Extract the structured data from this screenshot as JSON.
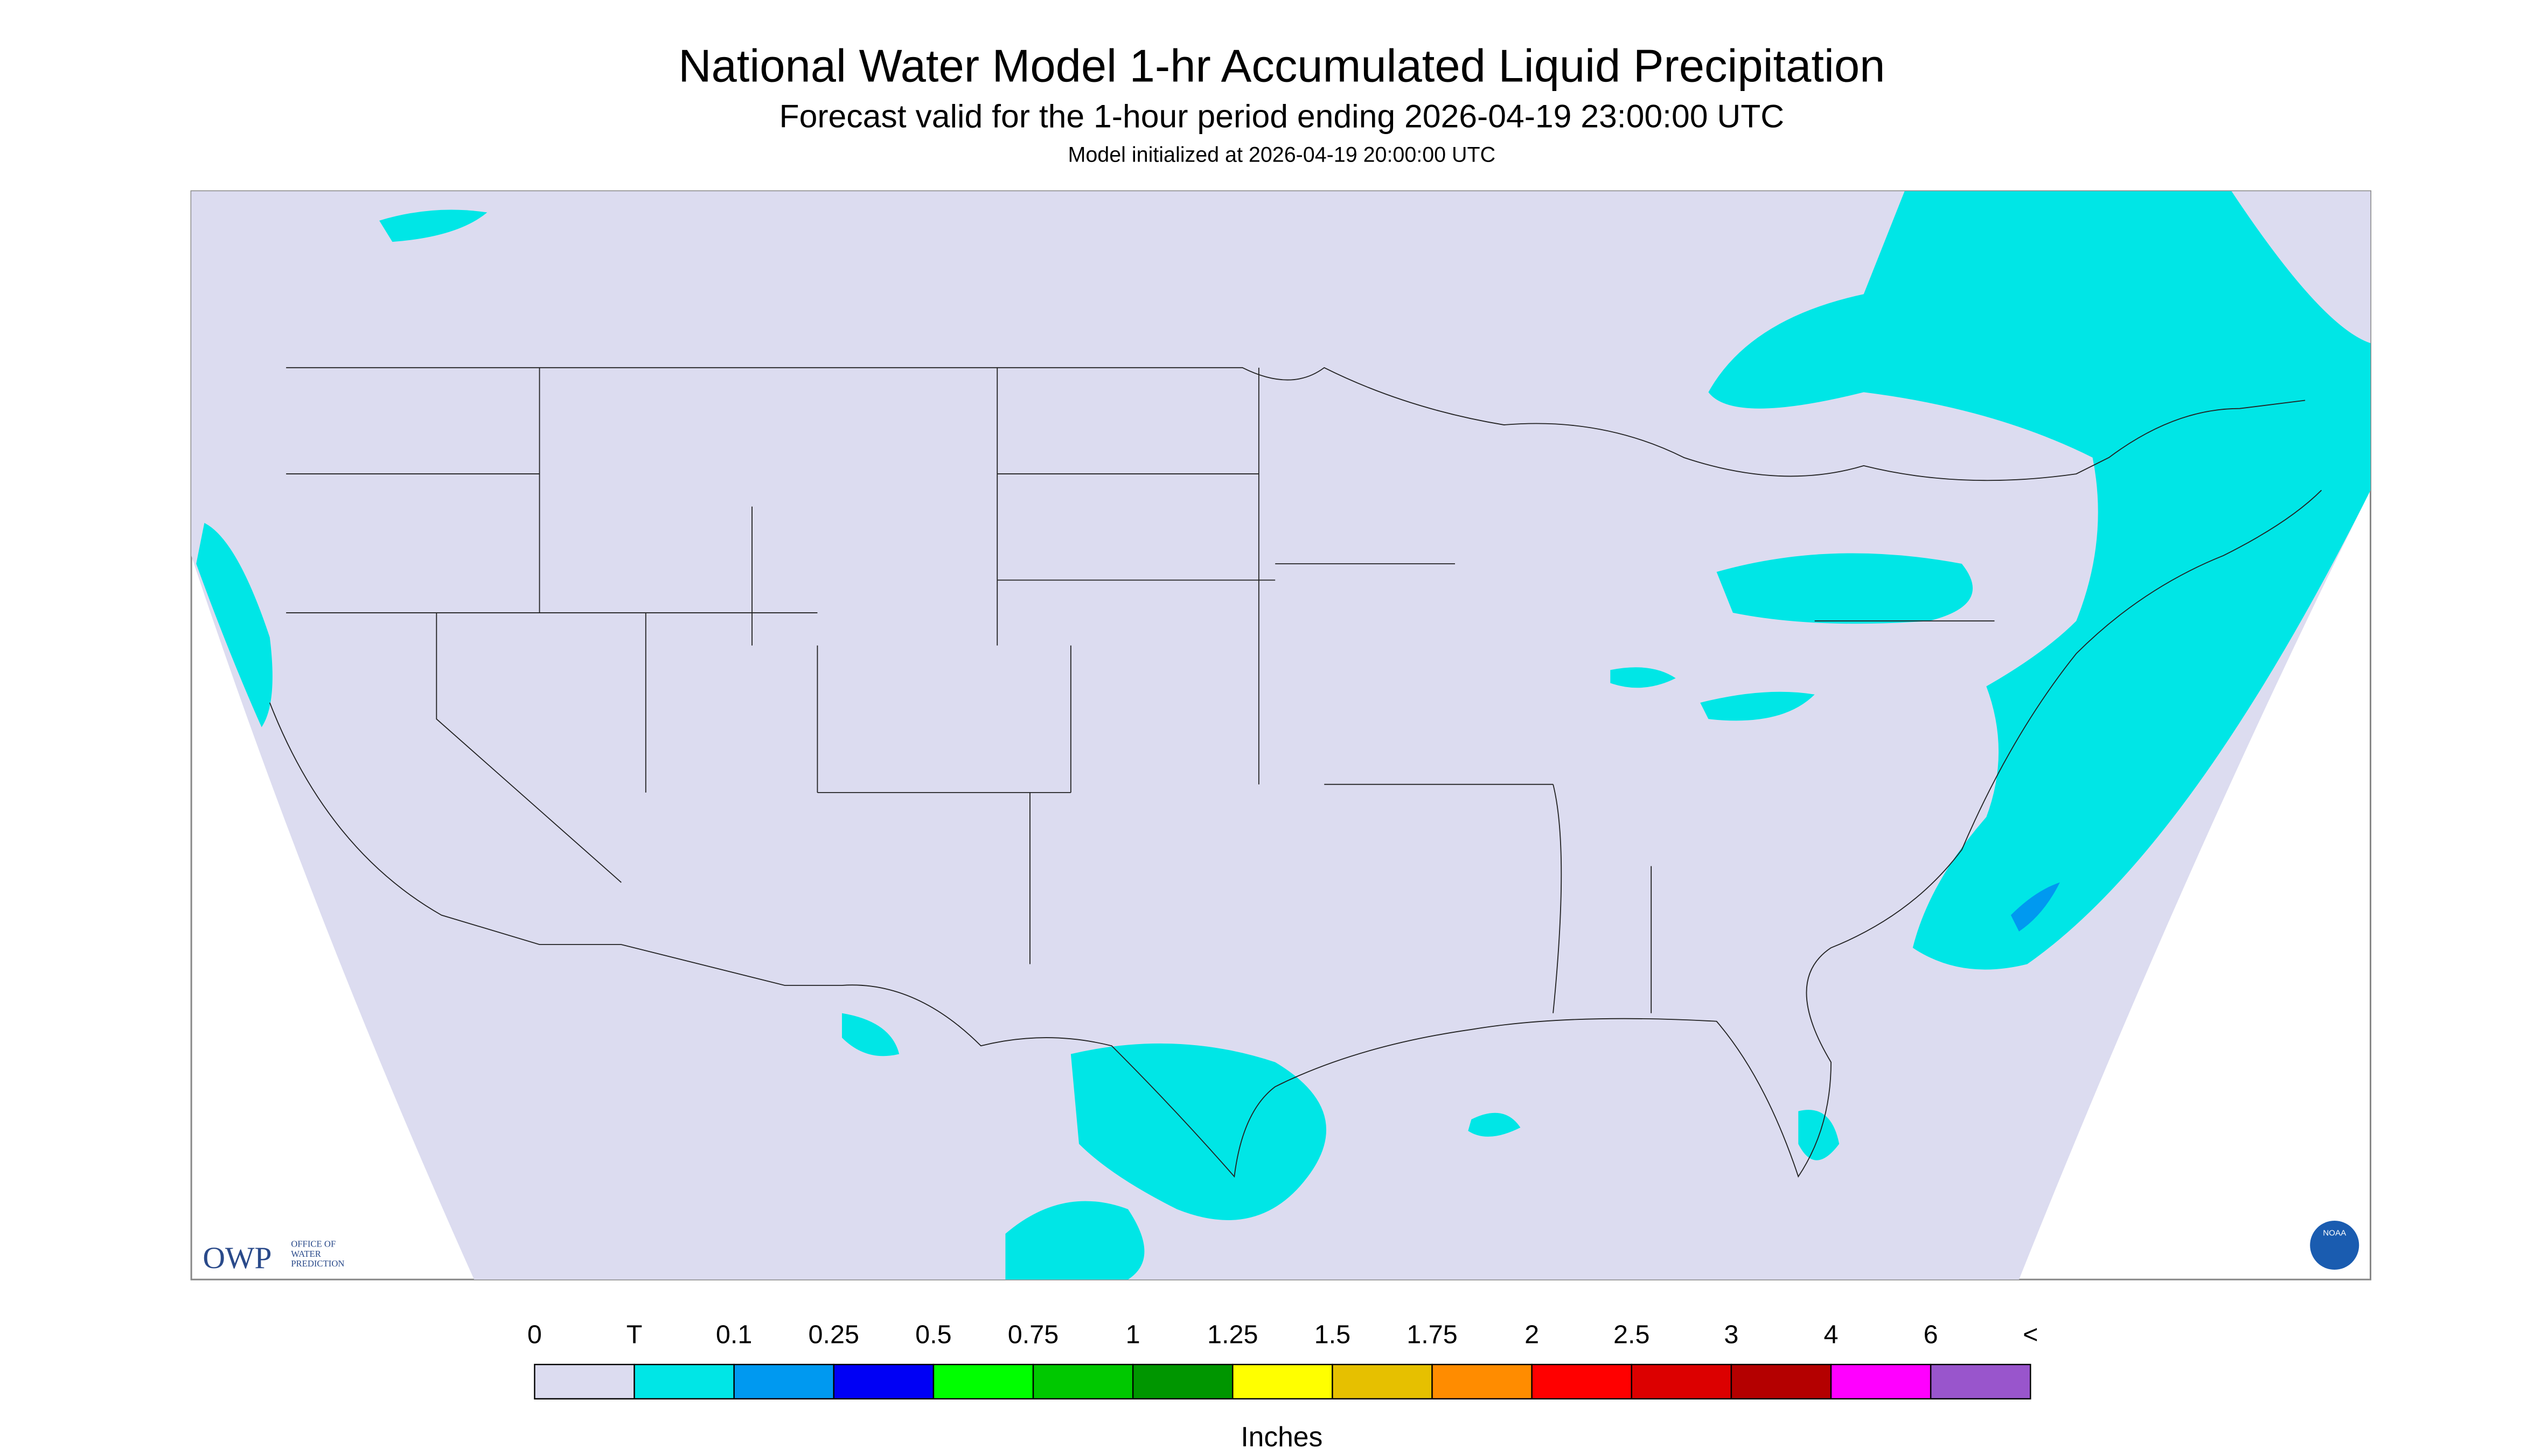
{
  "header": {
    "title": "National Water Model 1-hr Accumulated Liquid Precipitation",
    "subtitle": "Forecast valid for the 1-hour period ending 2026-04-19 23:00:00 UTC",
    "initialized": "Model initialized at 2026-04-19 20:00:00 UTC"
  },
  "logo": {
    "org": "OWP",
    "lines": [
      "OFFICE OF",
      "WATER",
      "PREDICTION"
    ],
    "agency": "NOAA"
  },
  "legend": {
    "labels": [
      "0",
      "T",
      "0.1",
      "0.25",
      "0.5",
      "0.75",
      "1",
      "1.25",
      "1.5",
      "1.75",
      "2",
      "2.5",
      "3",
      "4",
      "6",
      "<"
    ],
    "colors": [
      "#dcdcf0",
      "#00e6e6",
      "#0099f0",
      "#0000f5",
      "#00ff00",
      "#00c800",
      "#009600",
      "#ffff00",
      "#e6c000",
      "#ff8c00",
      "#ff0000",
      "#dc0000",
      "#b40000",
      "#ff00ff",
      "#9955cc"
    ],
    "unit": "Inches"
  }
}
